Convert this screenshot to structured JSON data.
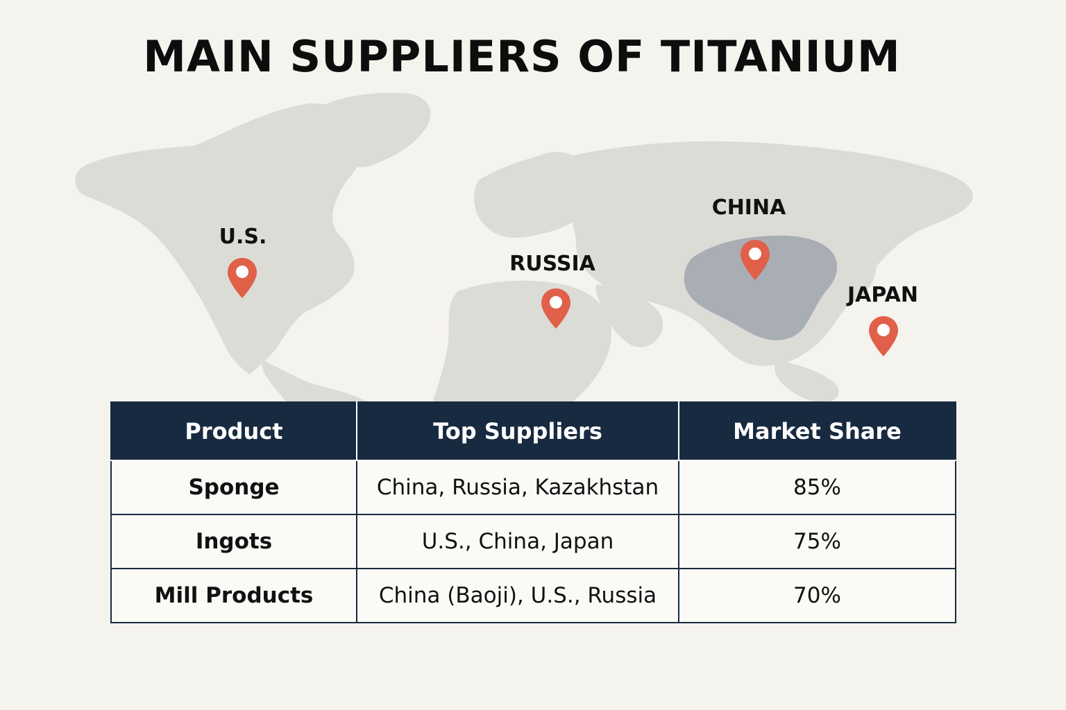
{
  "title": "MAIN SUPPLIERS OF TITANIUM",
  "map": {
    "markers": [
      {
        "label": "U.S.",
        "icon": "map-pin-icon"
      },
      {
        "label": "RUSSIA",
        "icon": "map-pin-icon"
      },
      {
        "label": "CHINA",
        "icon": "map-pin-icon"
      },
      {
        "label": "JAPAN",
        "icon": "map-pin-icon"
      }
    ],
    "colors": {
      "land": "#dcdcd6",
      "highlight": "#a9adb4",
      "pin": "#e0604a",
      "background": "#f5f3ee"
    }
  },
  "table": {
    "headers": [
      "Product",
      "Top Suppliers",
      "Market Share"
    ],
    "rows": [
      {
        "product": "Sponge",
        "suppliers": "China, Russia, Kazakhstan",
        "share": "85%"
      },
      {
        "product": "Ingots",
        "suppliers": "U.S., China, Japan",
        "share": "75%"
      },
      {
        "product": "Mill Products",
        "suppliers": "China (Baoji), U.S., Russia",
        "share": "70%"
      }
    ],
    "colors": {
      "header_bg": "#182a40",
      "header_text": "#ffffff",
      "border": "#182a40"
    }
  }
}
